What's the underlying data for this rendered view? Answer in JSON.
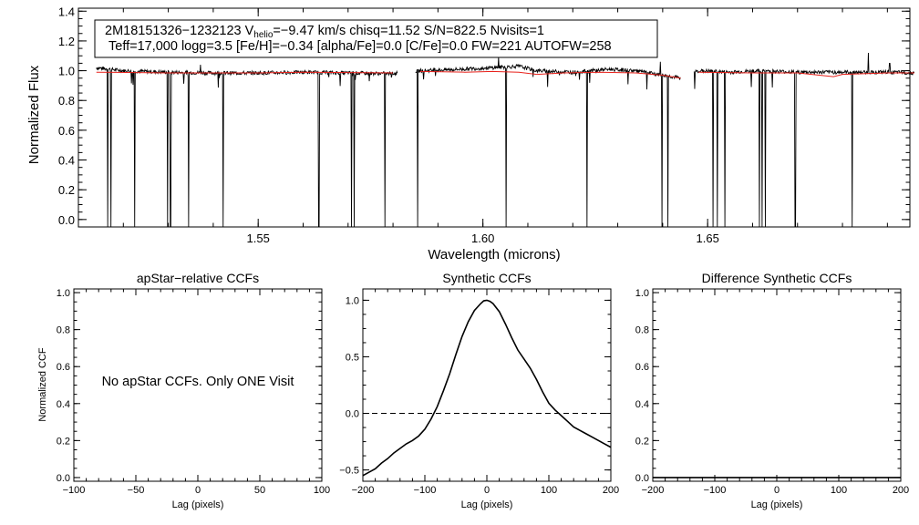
{
  "chart_data": [
    {
      "type": "line",
      "id": "spectrum",
      "title": "",
      "xlabel": "Wavelength (microns)",
      "ylabel": "Normalized Flux",
      "xlim": [
        1.51,
        1.695
      ],
      "ylim": [
        -0.05,
        1.42
      ],
      "xticks": [
        1.55,
        1.6,
        1.65
      ],
      "xtick_labels": [
        "1.55",
        "1.60",
        "1.65"
      ],
      "yticks": [
        0.0,
        0.2,
        0.4,
        0.6,
        0.8,
        1.0,
        1.2,
        1.4
      ],
      "ytick_labels": [
        "0.0",
        "0.2",
        "0.4",
        "0.6",
        "0.8",
        "1.0",
        "1.2",
        "1.4"
      ],
      "annotation": {
        "star_id": "2M18151326−1232123",
        "v_symbol": "V",
        "v_sub": "helio",
        "line1_rest": "=−9.47 km/s  chisq=11.52  S/N=822.5  Nvisits=1",
        "line2": "Teff=17,000 logg=3.5 [Fe/H]=−0.34 [alpha/Fe]=0.0 [C/Fe]=0.0 FW=221 AUTOFW=258"
      },
      "chip_ranges": [
        [
          1.514,
          1.581
        ],
        [
          1.585,
          1.644
        ],
        [
          1.647,
          1.696
        ]
      ],
      "observed_series": {
        "name": "observed",
        "color": "#000000",
        "continuum_points": [
          [
            1.514,
            1.02
          ],
          [
            1.52,
            1.0
          ],
          [
            1.53,
            0.99
          ],
          [
            1.54,
            0.985
          ],
          [
            1.55,
            0.985
          ],
          [
            1.56,
            0.99
          ],
          [
            1.57,
            0.985
          ],
          [
            1.58,
            0.98
          ],
          [
            1.586,
            1.0
          ],
          [
            1.595,
            1.01
          ],
          [
            1.602,
            1.02
          ],
          [
            1.608,
            1.03
          ],
          [
            1.612,
            1.0
          ],
          [
            1.62,
            0.99
          ],
          [
            1.628,
            1.01
          ],
          [
            1.634,
            1.0
          ],
          [
            1.64,
            0.97
          ],
          [
            1.644,
            0.95
          ],
          [
            1.648,
            1.0
          ],
          [
            1.655,
            0.99
          ],
          [
            1.662,
            1.0
          ],
          [
            1.67,
            0.99
          ],
          [
            1.678,
            0.99
          ],
          [
            1.684,
            0.99
          ],
          [
            1.69,
            0.99
          ],
          [
            1.696,
            0.985
          ]
        ],
        "bad_pixel_drops": [
          1.5165,
          1.5172,
          1.5225,
          1.5298,
          1.5305,
          1.5345,
          1.5422,
          1.5635,
          1.5708,
          1.5714,
          1.5782,
          1.5855,
          1.6052,
          1.6232,
          1.6398,
          1.6412,
          1.6512,
          1.6522,
          1.6538,
          1.6615,
          1.6621,
          1.6628,
          1.6695,
          1.6822,
          1.6858
        ],
        "spikes": [
          [
            1.6035,
            1.09
          ],
          [
            1.6395,
            1.06
          ],
          [
            1.5372,
            1.04
          ],
          [
            1.6858,
            1.12
          ],
          [
            1.6905,
            1.05
          ]
        ]
      },
      "model_series": {
        "name": "model",
        "color": "#e8211b",
        "points": [
          [
            1.514,
            0.99
          ],
          [
            1.53,
            0.985
          ],
          [
            1.55,
            0.985
          ],
          [
            1.56,
            0.99
          ],
          [
            1.58,
            0.985
          ],
          [
            1.586,
            0.995
          ],
          [
            1.596,
            0.99
          ],
          [
            1.602,
            0.995
          ],
          [
            1.608,
            0.99
          ],
          [
            1.612,
            0.975
          ],
          [
            1.618,
            0.985
          ],
          [
            1.626,
            0.99
          ],
          [
            1.634,
            0.985
          ],
          [
            1.64,
            0.97
          ],
          [
            1.644,
            0.95
          ],
          [
            1.648,
            0.99
          ],
          [
            1.66,
            0.985
          ],
          [
            1.67,
            0.985
          ],
          [
            1.678,
            0.96
          ],
          [
            1.68,
            0.975
          ],
          [
            1.69,
            0.985
          ],
          [
            1.696,
            0.985
          ]
        ]
      }
    },
    {
      "type": "line",
      "id": "apstar_ccf",
      "title": "apStar−relative CCFs",
      "xlabel": "Lag (pixels)",
      "ylabel": "Normalized CCF",
      "xlim": [
        -100,
        100
      ],
      "ylim": [
        -0.02,
        1.02
      ],
      "xticks": [
        -100,
        -50,
        0,
        50,
        100
      ],
      "xtick_labels": [
        "−100",
        "−50",
        "0",
        "50",
        "100"
      ],
      "yticks": [
        0.0,
        0.2,
        0.4,
        0.6,
        0.8,
        1.0
      ],
      "ytick_labels": [
        "0.0",
        "0.2",
        "0.4",
        "0.6",
        "0.8",
        "1.0"
      ],
      "annotation": "No apStar CCFs.  Only ONE Visit",
      "series": []
    },
    {
      "type": "line",
      "id": "synthetic_ccf",
      "title": "Synthetic CCFs",
      "xlabel": "Lag (pixels)",
      "ylabel": "",
      "xlim": [
        -200,
        200
      ],
      "ylim": [
        -0.6,
        1.1
      ],
      "xticks": [
        -200,
        -100,
        0,
        100,
        200
      ],
      "xtick_labels": [
        "−200",
        "−100",
        "0",
        "100",
        "200"
      ],
      "yticks": [
        -0.5,
        0.0,
        0.5,
        1.0
      ],
      "ytick_labels": [
        "−0.5",
        "0.0",
        "0.5",
        "1.0"
      ],
      "reference_line": {
        "y": 0.0,
        "style": "dashed"
      },
      "series": [
        {
          "name": "ccf",
          "x": [
            -200,
            -190,
            -180,
            -170,
            -160,
            -150,
            -140,
            -130,
            -120,
            -110,
            -100,
            -90,
            -80,
            -70,
            -60,
            -50,
            -40,
            -30,
            -20,
            -10,
            -5,
            0,
            5,
            10,
            20,
            30,
            40,
            50,
            60,
            70,
            80,
            90,
            100,
            110,
            120,
            130,
            140,
            150,
            160,
            170,
            180,
            190,
            200
          ],
          "y": [
            -0.55,
            -0.52,
            -0.49,
            -0.44,
            -0.4,
            -0.35,
            -0.31,
            -0.27,
            -0.24,
            -0.2,
            -0.14,
            -0.05,
            0.06,
            0.2,
            0.35,
            0.52,
            0.68,
            0.81,
            0.91,
            0.97,
            0.995,
            1.0,
            0.99,
            0.97,
            0.9,
            0.79,
            0.67,
            0.56,
            0.48,
            0.4,
            0.3,
            0.19,
            0.09,
            0.03,
            -0.02,
            -0.07,
            -0.12,
            -0.15,
            -0.18,
            -0.21,
            -0.24,
            -0.27,
            -0.3
          ]
        }
      ]
    },
    {
      "type": "line",
      "id": "difference_ccf",
      "title": "Difference Synthetic CCFs",
      "xlabel": "Lag (pixels)",
      "ylabel": "",
      "xlim": [
        -200,
        200
      ],
      "ylim": [
        -0.02,
        1.02
      ],
      "xticks": [
        -200,
        -100,
        0,
        100,
        200
      ],
      "xtick_labels": [
        "−200",
        "−100",
        "0",
        "100",
        "200"
      ],
      "yticks": [
        0.0,
        0.2,
        0.4,
        0.6,
        0.8,
        1.0
      ],
      "ytick_labels": [
        "0.0",
        "0.2",
        "0.4",
        "0.6",
        "0.8",
        "1.0"
      ],
      "series": [
        {
          "name": "difference",
          "x": [
            -200,
            200
          ],
          "y": [
            0.0,
            0.0
          ]
        }
      ]
    }
  ]
}
